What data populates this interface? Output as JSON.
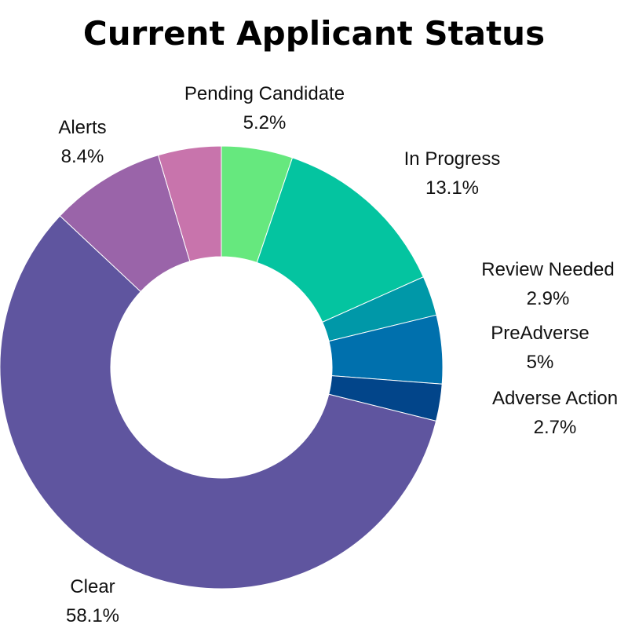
{
  "chart_data": {
    "type": "pie",
    "title": "Current Applicant Status",
    "slices": [
      {
        "label": "Pending Candidate",
        "percent_text": "5.2%",
        "value": 5.2,
        "color": "#66e87e"
      },
      {
        "label": "In Progress",
        "percent_text": "13.1%",
        "value": 13.1,
        "color": "#04c4a0"
      },
      {
        "label": "Review Needed",
        "percent_text": "2.9%",
        "value": 2.9,
        "color": "#0098a8"
      },
      {
        "label": "PreAdverse",
        "percent_text": "5%",
        "value": 5.0,
        "color": "#0070ad"
      },
      {
        "label": "Adverse Action",
        "percent_text": "2.7%",
        "value": 2.7,
        "color": "#02458a"
      },
      {
        "label": "Clear",
        "percent_text": "58.1%",
        "value": 58.1,
        "color": "#5f559f"
      },
      {
        "label": "Alerts",
        "percent_text": "8.4%",
        "value": 8.4,
        "color": "#9a64a9"
      },
      {
        "label": "",
        "percent_text": "",
        "value": 4.6,
        "color": "#c874ac"
      }
    ],
    "donut": true,
    "legend": "none"
  }
}
